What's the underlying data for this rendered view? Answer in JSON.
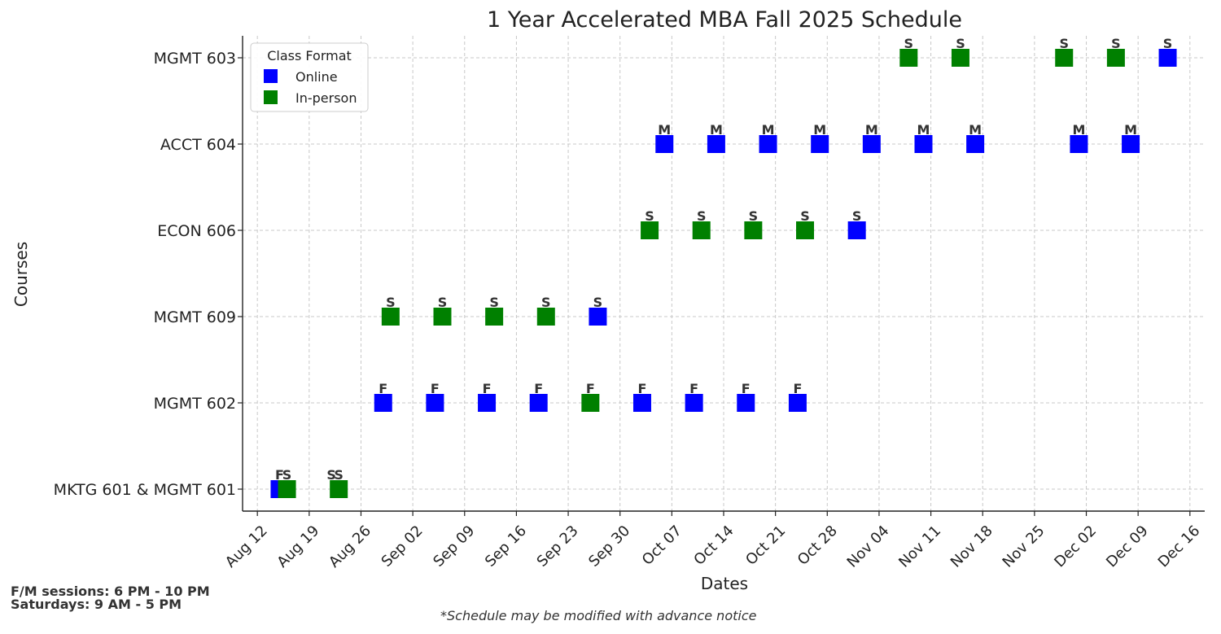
{
  "chart_data": {
    "type": "scatter",
    "title": "1 Year Accelerated MBA Fall 2025 Schedule",
    "xlabel": "Dates",
    "ylabel": "Courses",
    "x_ticks": [
      "Aug 12",
      "Aug 19",
      "Aug 26",
      "Sep 02",
      "Sep 09",
      "Sep 16",
      "Sep 23",
      "Sep 30",
      "Oct 07",
      "Oct 14",
      "Oct 21",
      "Oct 28",
      "Nov 04",
      "Nov 11",
      "Nov 18",
      "Nov 25",
      "Dec 02",
      "Dec 09",
      "Dec 16"
    ],
    "x_tick_dates": [
      "2025-08-12",
      "2025-08-19",
      "2025-08-26",
      "2025-09-02",
      "2025-09-09",
      "2025-09-16",
      "2025-09-23",
      "2025-09-30",
      "2025-10-07",
      "2025-10-14",
      "2025-10-21",
      "2025-10-28",
      "2025-11-04",
      "2025-11-11",
      "2025-11-18",
      "2025-11-25",
      "2025-12-02",
      "2025-12-09",
      "2025-12-16"
    ],
    "xlim": [
      "2025-08-10",
      "2025-12-18"
    ],
    "categories": [
      "MKTG 601 & MGMT 601",
      "MGMT 602",
      "MGMT 609",
      "ECON 606",
      "ACCT 604",
      "MGMT 603"
    ],
    "grid": true,
    "legend": {
      "title": "Class Format",
      "placement": "top-left",
      "items": [
        {
          "label": "Online",
          "color": "#0000ff"
        },
        {
          "label": "In-person",
          "color": "#008000"
        }
      ]
    },
    "series": [
      {
        "name": "Online",
        "color": "#0000ff",
        "points": [
          {
            "course": "MKTG 601 & MGMT 601",
            "date": "2025-08-15",
            "label": "F"
          },
          {
            "course": "MGMT 602",
            "date": "2025-08-29",
            "label": "F"
          },
          {
            "course": "MGMT 602",
            "date": "2025-09-05",
            "label": "F"
          },
          {
            "course": "MGMT 602",
            "date": "2025-09-12",
            "label": "F"
          },
          {
            "course": "MGMT 602",
            "date": "2025-09-19",
            "label": "F"
          },
          {
            "course": "MGMT 602",
            "date": "2025-10-03",
            "label": "F"
          },
          {
            "course": "MGMT 602",
            "date": "2025-10-10",
            "label": "F"
          },
          {
            "course": "MGMT 602",
            "date": "2025-10-17",
            "label": "F"
          },
          {
            "course": "MGMT 602",
            "date": "2025-10-24",
            "label": "F"
          },
          {
            "course": "MGMT 609",
            "date": "2025-09-27",
            "label": "S"
          },
          {
            "course": "ECON 606",
            "date": "2025-11-01",
            "label": "S"
          },
          {
            "course": "ACCT 604",
            "date": "2025-10-06",
            "label": "M"
          },
          {
            "course": "ACCT 604",
            "date": "2025-10-13",
            "label": "M"
          },
          {
            "course": "ACCT 604",
            "date": "2025-10-20",
            "label": "M"
          },
          {
            "course": "ACCT 604",
            "date": "2025-10-27",
            "label": "M"
          },
          {
            "course": "ACCT 604",
            "date": "2025-11-03",
            "label": "M"
          },
          {
            "course": "ACCT 604",
            "date": "2025-11-10",
            "label": "M"
          },
          {
            "course": "ACCT 604",
            "date": "2025-11-17",
            "label": "M"
          },
          {
            "course": "ACCT 604",
            "date": "2025-12-01",
            "label": "M"
          },
          {
            "course": "ACCT 604",
            "date": "2025-12-08",
            "label": "M"
          },
          {
            "course": "MGMT 603",
            "date": "2025-12-13",
            "label": "S"
          }
        ]
      },
      {
        "name": "In-person",
        "color": "#008000",
        "points": [
          {
            "course": "MKTG 601 & MGMT 601",
            "date": "2025-08-16",
            "label": "S"
          },
          {
            "course": "MKTG 601 & MGMT 601",
            "date": "2025-08-23",
            "label": "S"
          },
          {
            "course": "MGMT 602",
            "date": "2025-09-26",
            "label": "F"
          },
          {
            "course": "MGMT 609",
            "date": "2025-08-30",
            "label": "S"
          },
          {
            "course": "MGMT 609",
            "date": "2025-09-06",
            "label": "S"
          },
          {
            "course": "MGMT 609",
            "date": "2025-09-13",
            "label": "S"
          },
          {
            "course": "MGMT 609",
            "date": "2025-09-20",
            "label": "S"
          },
          {
            "course": "ECON 606",
            "date": "2025-10-04",
            "label": "S"
          },
          {
            "course": "ECON 606",
            "date": "2025-10-11",
            "label": "S"
          },
          {
            "course": "ECON 606",
            "date": "2025-10-18",
            "label": "S"
          },
          {
            "course": "ECON 606",
            "date": "2025-10-25",
            "label": "S"
          },
          {
            "course": "MGMT 603",
            "date": "2025-11-08",
            "label": "S"
          },
          {
            "course": "MGMT 603",
            "date": "2025-11-15",
            "label": "S"
          },
          {
            "course": "MGMT 603",
            "date": "2025-11-29",
            "label": "S"
          },
          {
            "course": "MGMT 603",
            "date": "2025-12-06",
            "label": "S"
          }
        ]
      }
    ],
    "extra_labels": [
      {
        "course": "MKTG 601 & MGMT 601",
        "date": "2025-08-22",
        "label": "S"
      }
    ]
  },
  "notes": {
    "sessions_fm": "F/M sessions: 6 PM - 10 PM",
    "sessions_sat": "Saturdays: 9 AM - 5 PM",
    "disclaimer": "*Schedule may be modified with advance notice"
  }
}
